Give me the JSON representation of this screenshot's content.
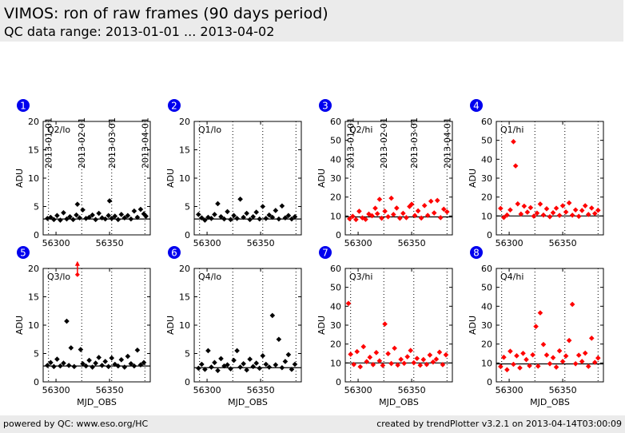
{
  "header": {
    "title": "VIMOS: ron of raw frames (90 days period)",
    "subtitle": "QC data range: 2013-01-01 ... 2013-04-02"
  },
  "footer": {
    "left": "powered by QC: www.eso.org/HC",
    "right": "created by trendPlotter v3.2.1 on 2013-04-14T03:00:09"
  },
  "colors": {
    "lo_series": "#000000",
    "hi_series": "#ff0000",
    "badge": "#0000ee"
  },
  "date_labels": [
    "2013-01-01",
    "2013-02-01",
    "2013-03-01",
    "2013-04-01"
  ],
  "chart_data": [
    {
      "type": "scatter",
      "badge": "1",
      "label": "Q2/lo",
      "color": "black",
      "xlabel": "",
      "ylabel": "ADU",
      "xlim": [
        56288,
        56388
      ],
      "ylim": [
        0,
        20
      ],
      "yticks": [
        0,
        5,
        10,
        15,
        20
      ],
      "xticks": [
        56300,
        56350
      ],
      "ref_line": 2.8,
      "date_lines": [
        56293,
        56324,
        56352,
        56383
      ],
      "x": [
        56292,
        56295,
        56298,
        56301,
        56304,
        56307,
        56310,
        56313,
        56316,
        56319,
        56320,
        56322,
        56325,
        56328,
        56331,
        56334,
        56337,
        56340,
        56343,
        56346,
        56349,
        56350,
        56352,
        56355,
        56358,
        56361,
        56364,
        56367,
        56370,
        56373,
        56376,
        56379,
        56382,
        56384
      ],
      "y": [
        2.9,
        3.1,
        2.7,
        3.4,
        2.6,
        3.9,
        2.8,
        3.2,
        2.7,
        3.5,
        5.4,
        3.0,
        4.4,
        2.9,
        3.1,
        3.5,
        2.7,
        3.8,
        3.0,
        2.8,
        3.4,
        6.0,
        2.9,
        3.3,
        2.7,
        3.6,
        3.0,
        3.4,
        2.8,
        4.2,
        3.1,
        4.5,
        3.7,
        3.3
      ]
    },
    {
      "type": "scatter",
      "badge": "2",
      "label": "Q1/lo",
      "color": "black",
      "xlabel": "",
      "ylabel": "ADU",
      "xlim": [
        56288,
        56388
      ],
      "ylim": [
        0,
        20
      ],
      "yticks": [
        0,
        5,
        10,
        15,
        20
      ],
      "xticks": [
        56300,
        56350
      ],
      "ref_line": 2.8,
      "date_lines": [
        56293,
        56324,
        56352,
        56383
      ],
      "x": [
        56292,
        56295,
        56298,
        56301,
        56304,
        56307,
        56310,
        56313,
        56316,
        56319,
        56322,
        56325,
        56328,
        56331,
        56334,
        56337,
        56340,
        56343,
        56346,
        56349,
        56352,
        56355,
        56358,
        56361,
        56364,
        56367,
        56370,
        56373,
        56376,
        56379,
        56382
      ],
      "y": [
        3.6,
        3.0,
        2.6,
        3.1,
        2.9,
        3.6,
        5.5,
        3.2,
        2.8,
        4.1,
        2.7,
        3.4,
        2.9,
        6.3,
        3.1,
        3.8,
        2.7,
        3.2,
        4.0,
        2.8,
        5.0,
        2.9,
        3.5,
        3.1,
        4.3,
        2.8,
        5.1,
        3.0,
        3.4,
        2.8,
        3.2
      ]
    },
    {
      "type": "scatter",
      "badge": "3",
      "label": "Q2/hi",
      "color": "red",
      "xlabel": "",
      "ylabel": "ADU",
      "xlim": [
        56288,
        56388
      ],
      "ylim": [
        0,
        60
      ],
      "yticks": [
        0,
        10,
        20,
        30,
        40,
        50,
        60
      ],
      "xticks": [
        56300,
        56350
      ],
      "ref_line": 9.5,
      "date_lines": [
        56293,
        56324,
        56352,
        56383
      ],
      "x": [
        56292,
        56295,
        56298,
        56301,
        56304,
        56307,
        56310,
        56313,
        56316,
        56318,
        56320,
        56322,
        56325,
        56328,
        56331,
        56333,
        56336,
        56339,
        56342,
        56345,
        56348,
        56350,
        56353,
        56356,
        56359,
        56362,
        56365,
        56368,
        56371,
        56374,
        56377,
        56380,
        56383
      ],
      "y": [
        8.5,
        9.8,
        8.1,
        12.5,
        9.0,
        8.2,
        11.0,
        10.1,
        14.1,
        11.2,
        18.8,
        8.8,
        12.5,
        9.6,
        19.4,
        10.8,
        14.2,
        8.8,
        11.4,
        9.1,
        15.0,
        16.2,
        10.2,
        12.7,
        8.9,
        15.5,
        10.3,
        17.8,
        11.6,
        18.2,
        9.1,
        13.6,
        12.2
      ]
    },
    {
      "type": "scatter",
      "badge": "4",
      "label": "Q1/hi",
      "color": "red",
      "xlabel": "",
      "ylabel": "ADU",
      "xlim": [
        56288,
        56388
      ],
      "ylim": [
        0,
        60
      ],
      "yticks": [
        0,
        10,
        20,
        30,
        40,
        50,
        60
      ],
      "xticks": [
        56300,
        56350
      ],
      "ref_line": 10.0,
      "date_lines": [
        56293,
        56324,
        56352,
        56383
      ],
      "x": [
        56292,
        56295,
        56298,
        56301,
        56304,
        56306,
        56308,
        56311,
        56314,
        56317,
        56320,
        56323,
        56326,
        56329,
        56332,
        56335,
        56338,
        56341,
        56344,
        56347,
        56350,
        56353,
        56356,
        56359,
        56362,
        56365,
        56368,
        56371,
        56374,
        56377,
        56380,
        56383
      ],
      "y": [
        14.0,
        9.2,
        10.5,
        13.2,
        49.3,
        36.5,
        16.4,
        11.0,
        15.2,
        12.0,
        14.4,
        9.9,
        11.5,
        16.3,
        10.5,
        13.8,
        9.6,
        11.7,
        14.1,
        10.3,
        15.4,
        12.1,
        16.9,
        10.4,
        13.2,
        9.8,
        12.9,
        15.4,
        10.8,
        14.2,
        11.3,
        13.0
      ]
    },
    {
      "type": "scatter",
      "badge": "5",
      "label": "Q3/lo",
      "color": "black",
      "xlabel": "MJD_OBS",
      "ylabel": "ADU",
      "xlim": [
        56288,
        56388
      ],
      "ylim": [
        0,
        20
      ],
      "yticks": [
        0,
        5,
        10,
        15,
        20
      ],
      "xticks": [
        56300,
        56350
      ],
      "ref_line": 2.8,
      "date_lines": [
        56293,
        56324,
        56352,
        56383
      ],
      "outlier": {
        "x": 56320,
        "y": 18.9,
        "color": "red"
      },
      "x": [
        56292,
        56295,
        56298,
        56301,
        56304,
        56307,
        56310,
        56312,
        56314,
        56317,
        56323,
        56325,
        56328,
        56331,
        56334,
        56337,
        56340,
        56343,
        56346,
        56349,
        56352,
        56355,
        56358,
        56361,
        56364,
        56367,
        56370,
        56373,
        56376,
        56379,
        56382
      ],
      "y": [
        2.9,
        3.4,
        2.7,
        4.0,
        2.8,
        3.3,
        10.7,
        2.9,
        6.0,
        2.7,
        5.7,
        3.2,
        2.8,
        3.8,
        2.6,
        3.3,
        4.3,
        2.9,
        3.6,
        2.7,
        4.2,
        3.1,
        2.8,
        3.9,
        2.6,
        4.5,
        3.2,
        2.8,
        5.6,
        3.0,
        3.4
      ]
    },
    {
      "type": "scatter",
      "badge": "6",
      "label": "Q4/lo",
      "color": "black",
      "xlabel": "MJD_OBS",
      "ylabel": "ADU",
      "xlim": [
        56288,
        56388
      ],
      "ylim": [
        0,
        20
      ],
      "yticks": [
        0,
        5,
        10,
        15,
        20
      ],
      "xticks": [
        56300,
        56350
      ],
      "ref_line": 2.5,
      "date_lines": [
        56293,
        56324,
        56352,
        56383
      ],
      "x": [
        56292,
        56295,
        56298,
        56301,
        56304,
        56307,
        56310,
        56313,
        56316,
        56319,
        56322,
        56325,
        56328,
        56331,
        56334,
        56337,
        56340,
        56343,
        56346,
        56349,
        56352,
        56355,
        56358,
        56361,
        56364,
        56367,
        56370,
        56373,
        56376,
        56379,
        56382
      ],
      "y": [
        2.4,
        3.1,
        2.2,
        5.5,
        2.6,
        3.4,
        2.0,
        4.1,
        2.8,
        3.0,
        2.3,
        3.8,
        5.5,
        2.6,
        3.2,
        2.1,
        4.0,
        2.7,
        3.3,
        2.4,
        4.6,
        3.1,
        2.6,
        11.7,
        3.0,
        7.5,
        2.5,
        3.6,
        4.8,
        2.2,
        3.1
      ]
    },
    {
      "type": "scatter",
      "badge": "7",
      "label": "Q3/hi",
      "color": "red",
      "xlabel": "MJD_OBS",
      "ylabel": "ADU",
      "xlim": [
        56288,
        56388
      ],
      "ylim": [
        0,
        60
      ],
      "yticks": [
        0,
        10,
        20,
        30,
        40,
        50,
        60
      ],
      "xticks": [
        56300,
        56350
      ],
      "ref_line": 10.0,
      "date_lines": [
        56293,
        56324,
        56352,
        56383
      ],
      "x": [
        56291,
        56293,
        56296,
        56299,
        56302,
        56305,
        56308,
        56311,
        56314,
        56317,
        56320,
        56323,
        56325,
        56328,
        56331,
        56334,
        56337,
        56340,
        56343,
        56346,
        56349,
        56352,
        56355,
        56358,
        56361,
        56364,
        56367,
        56370,
        56373,
        56376,
        56379,
        56382
      ],
      "y": [
        41.5,
        14.6,
        9.2,
        16.0,
        8.0,
        18.6,
        10.7,
        13.0,
        9.1,
        15.5,
        11.1,
        8.7,
        30.6,
        14.9,
        9.7,
        17.8,
        8.9,
        11.9,
        9.8,
        13.3,
        16.6,
        10.1,
        12.4,
        8.8,
        11.8,
        9.2,
        14.2,
        10.5,
        12.0,
        15.7,
        9.1,
        14.3
      ]
    },
    {
      "type": "scatter",
      "badge": "8",
      "label": "Q4/hi",
      "color": "red",
      "xlabel": "MJD_OBS",
      "ylabel": "ADU",
      "xlim": [
        56288,
        56388
      ],
      "ylim": [
        0,
        60
      ],
      "yticks": [
        0,
        10,
        20,
        30,
        40,
        50,
        60
      ],
      "xticks": [
        56300,
        56350
      ],
      "ref_line": 9.5,
      "date_lines": [
        56293,
        56324,
        56352,
        56383
      ],
      "x": [
        56292,
        56295,
        56298,
        56301,
        56304,
        56307,
        56310,
        56313,
        56316,
        56319,
        56322,
        56325,
        56327,
        56329,
        56332,
        56335,
        56338,
        56341,
        56344,
        56347,
        56350,
        56353,
        56356,
        56359,
        56362,
        56365,
        56368,
        56371,
        56374,
        56377,
        56380,
        56383
      ],
      "y": [
        8.1,
        13.0,
        6.4,
        16.2,
        9.3,
        13.8,
        7.4,
        15.1,
        11.8,
        8.5,
        14.3,
        29.3,
        8.3,
        36.5,
        19.8,
        14.2,
        9.6,
        12.8,
        7.8,
        16.4,
        10.8,
        13.7,
        21.9,
        41.0,
        9.6,
        14.1,
        10.8,
        15.2,
        8.2,
        23.1,
        10.3,
        12.6
      ]
    }
  ]
}
